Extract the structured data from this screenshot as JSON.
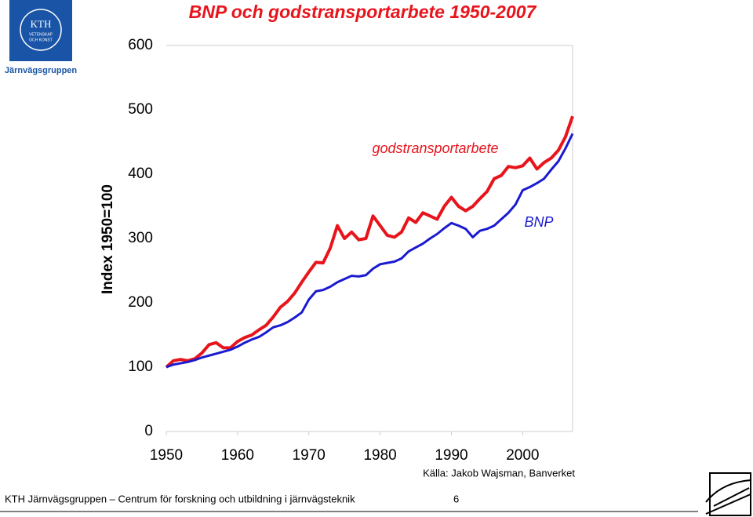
{
  "chart_data": {
    "type": "line",
    "title": "BNP och godstransportarbete 1950-2007",
    "y_label": "Index 1950=100",
    "source": "Källa: Jakob Wajsman, Banverket",
    "x": [
      1950,
      1951,
      1952,
      1953,
      1954,
      1955,
      1956,
      1957,
      1958,
      1959,
      1960,
      1961,
      1962,
      1963,
      1964,
      1965,
      1966,
      1967,
      1968,
      1969,
      1970,
      1971,
      1972,
      1973,
      1974,
      1975,
      1976,
      1977,
      1978,
      1979,
      1980,
      1981,
      1982,
      1983,
      1984,
      1985,
      1986,
      1987,
      1988,
      1989,
      1990,
      1991,
      1992,
      1993,
      1994,
      1995,
      1996,
      1997,
      1998,
      1999,
      2000,
      2001,
      2002,
      2003,
      2004,
      2005,
      2006,
      2007
    ],
    "series": [
      {
        "name": "godstransportarbete",
        "color": "#e8141c",
        "values": [
          100,
          110,
          112,
          110,
          113,
          122,
          135,
          138,
          130,
          130,
          140,
          146,
          150,
          158,
          165,
          178,
          193,
          202,
          215,
          232,
          248,
          263,
          262,
          285,
          320,
          300,
          310,
          298,
          300,
          335,
          320,
          305,
          302,
          310,
          332,
          325,
          340,
          335,
          330,
          350,
          364,
          350,
          343,
          350,
          362,
          373,
          393,
          398,
          412,
          410,
          413,
          425,
          408,
          418,
          425,
          437,
          458,
          490
        ]
      },
      {
        "name": "BNP",
        "color": "#1a1ad0",
        "values": [
          100,
          104,
          106,
          108,
          111,
          115,
          118,
          121,
          124,
          127,
          132,
          138,
          143,
          147,
          154,
          162,
          165,
          170,
          177,
          185,
          205,
          218,
          220,
          225,
          232,
          237,
          242,
          241,
          243,
          253,
          260,
          262,
          264,
          269,
          280,
          286,
          292,
          300,
          307,
          316,
          324,
          320,
          315,
          302,
          312,
          315,
          320,
          330,
          340,
          353,
          375,
          380,
          386,
          393,
          407,
          420,
          440,
          463
        ]
      }
    ],
    "xlim": [
      1950,
      2007
    ],
    "xticks": [
      1950,
      1960,
      1970,
      1980,
      1990,
      2000
    ],
    "ylim": [
      0,
      600
    ],
    "yticks": [
      0,
      100,
      200,
      300,
      400,
      500,
      600
    ]
  },
  "slide": {
    "group": "Järnvägsgruppen",
    "logo": [
      "KTH",
      "VETENSKAP",
      "OCH KONST"
    ],
    "footer": "KTH Järnvägsgruppen – Centrum för forskning och utbildning i järnvägsteknik",
    "page": "6"
  }
}
